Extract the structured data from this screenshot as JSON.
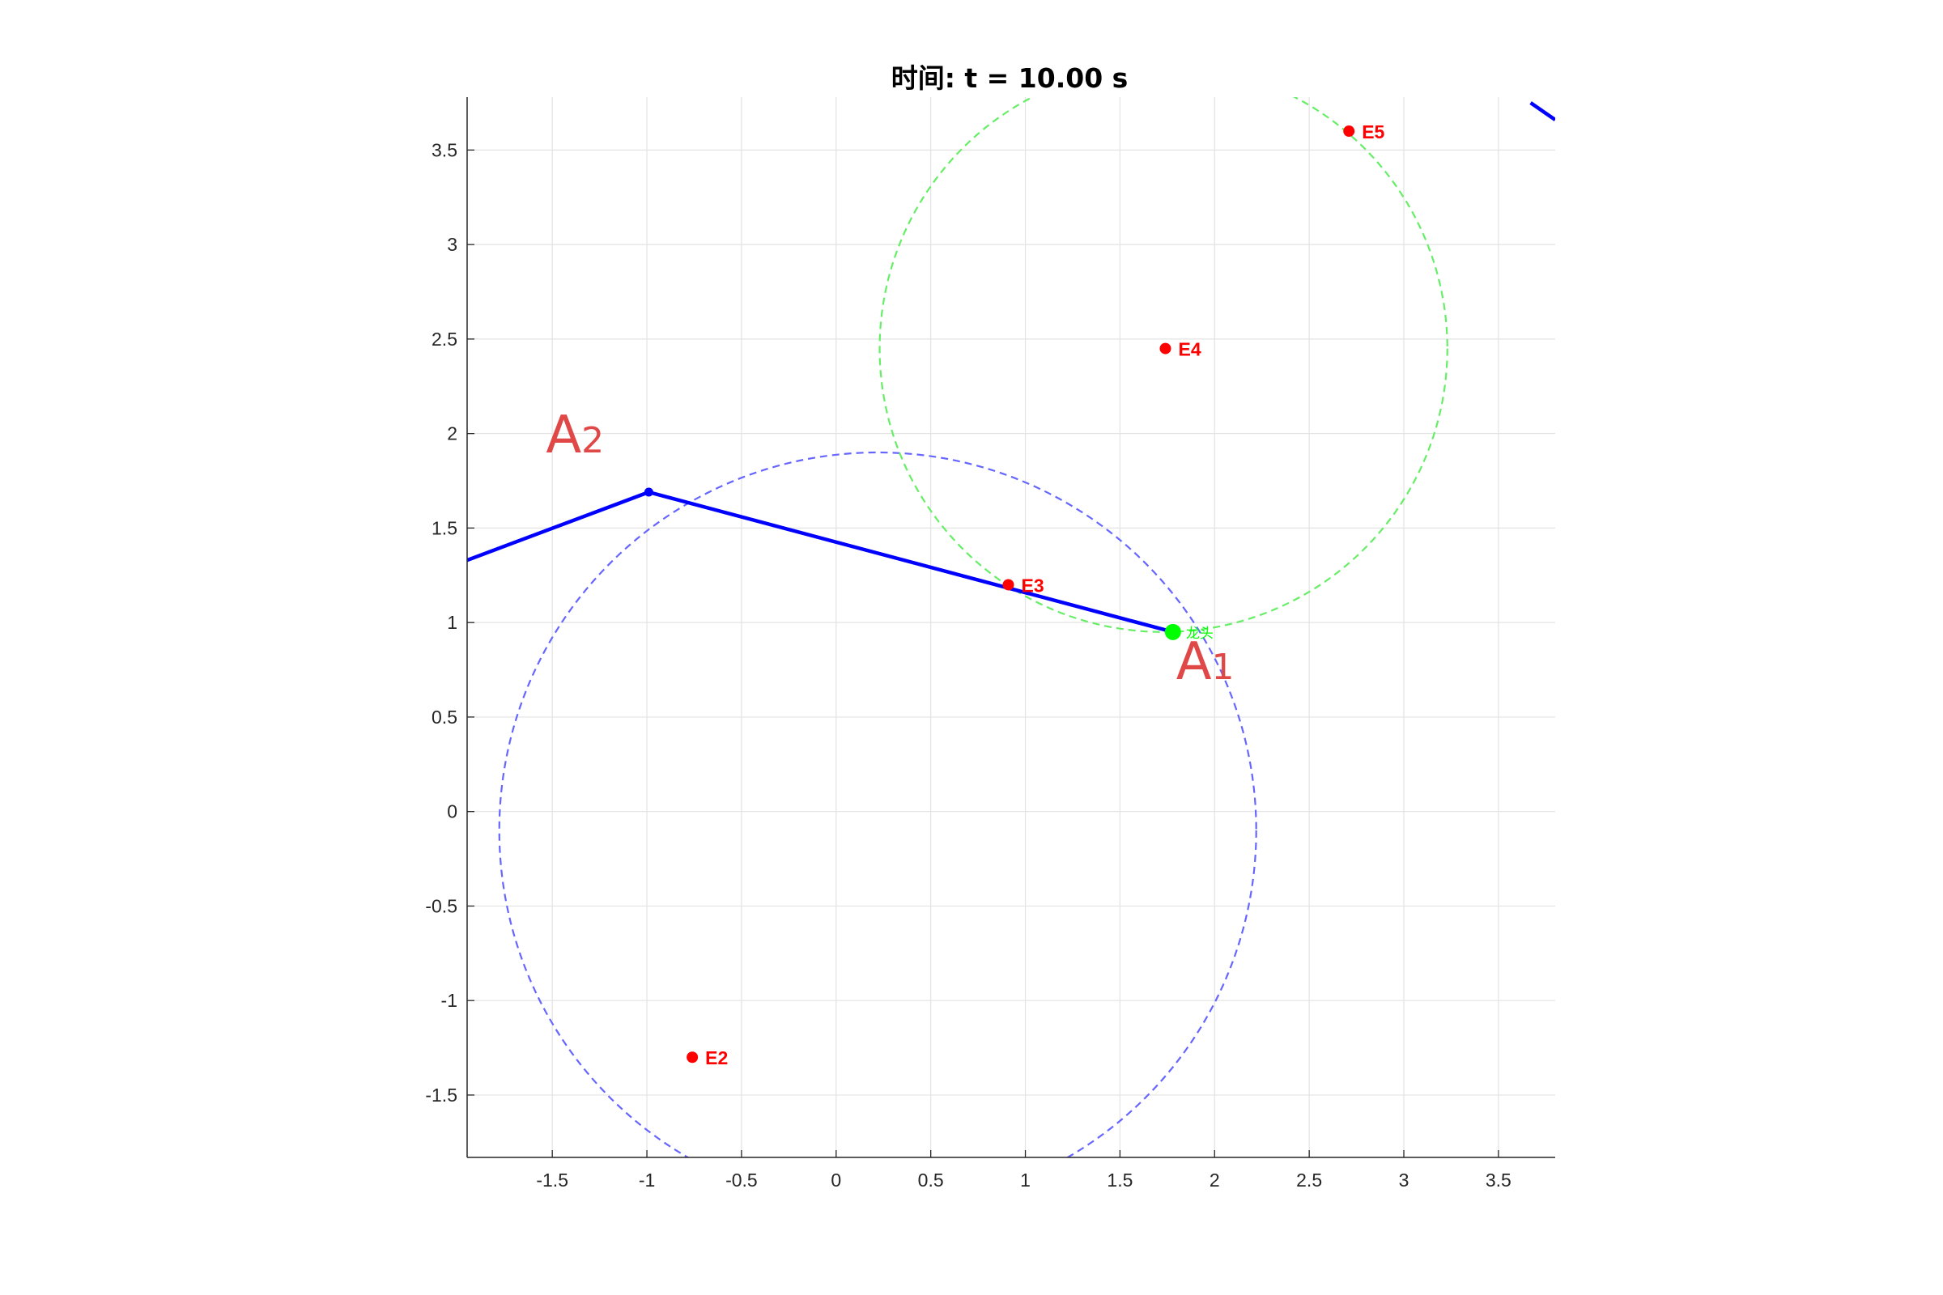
{
  "chart_data": {
    "type": "line",
    "title": "时间: t = 10.00 s",
    "xlim": [
      -1.95,
      3.8
    ],
    "ylim": [
      -1.83,
      3.78
    ],
    "xticks": [
      "-1.5",
      "-1",
      "-0.5",
      "0",
      "0.5",
      "1",
      "1.5",
      "2",
      "2.5",
      "3",
      "3.5"
    ],
    "yticks": [
      "3.5",
      "3",
      "2.5",
      "2",
      "1.5",
      "1",
      "0.5",
      "0",
      "-0.5",
      "-1",
      "-1.5"
    ],
    "grid": true,
    "series": [
      {
        "kind": "solid",
        "color": "#0000ff",
        "x": [
          -1.95,
          -0.99,
          1.78
        ],
        "y": [
          1.33,
          1.69,
          0.95
        ]
      },
      {
        "kind": "solid",
        "color": "#0000ff",
        "x": [
          3.67,
          3.8
        ],
        "y": [
          3.75,
          3.66
        ]
      }
    ],
    "circles": [
      {
        "cx": 0.22,
        "cy": -0.1,
        "r": 2.0,
        "color": "#6666ff",
        "style": "dashed"
      },
      {
        "cx": 1.73,
        "cy": 2.45,
        "r": 1.5,
        "color": "#66ee66",
        "style": "dashed"
      }
    ],
    "nodes": [
      {
        "x": -0.99,
        "y": 1.69,
        "color": "#0000ff"
      }
    ],
    "points": [
      {
        "label": "E2",
        "x": -0.76,
        "y": -1.3
      },
      {
        "label": "E3",
        "x": 0.91,
        "y": 1.2
      },
      {
        "label": "E4",
        "x": 1.74,
        "y": 2.45
      },
      {
        "label": "E5",
        "x": 2.71,
        "y": 3.6
      }
    ],
    "head": {
      "label": "龙头",
      "x": 1.78,
      "y": 0.95,
      "color": "#00ff00"
    },
    "annotations": [
      {
        "letter": "A",
        "sub": "2",
        "x": -1.38,
        "y": 1.9
      },
      {
        "letter": "A",
        "sub": "1",
        "x": 1.95,
        "y": 0.7
      }
    ]
  }
}
